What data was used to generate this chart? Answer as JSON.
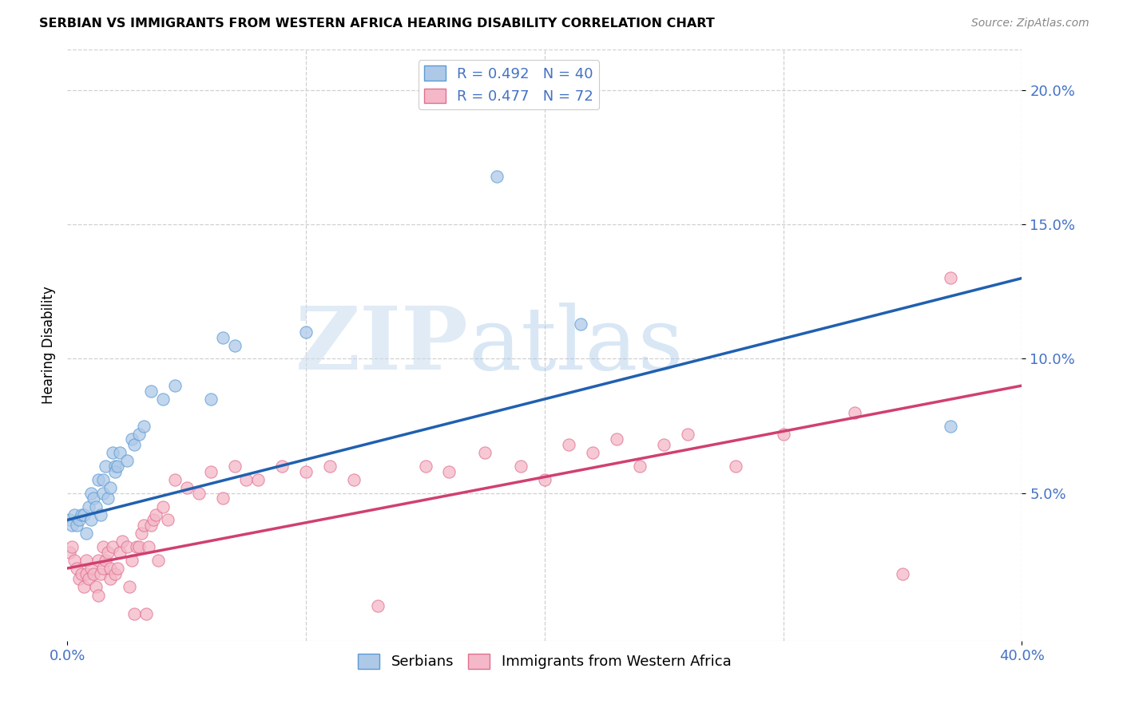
{
  "title": "SERBIAN VS IMMIGRANTS FROM WESTERN AFRICA HEARING DISABILITY CORRELATION CHART",
  "source": "Source: ZipAtlas.com",
  "ylabel": "Hearing Disability",
  "xlim": [
    0.0,
    0.4
  ],
  "ylim": [
    -0.005,
    0.215
  ],
  "yticks": [
    0.05,
    0.1,
    0.15,
    0.2
  ],
  "ytick_labels": [
    "5.0%",
    "10.0%",
    "15.0%",
    "20.0%"
  ],
  "xtick_labels_shown": [
    "0.0%",
    "40.0%"
  ],
  "xticks_shown": [
    0.0,
    0.4
  ],
  "watermark_zip": "ZIP",
  "watermark_atlas": "atlas",
  "legend_line1": "R = 0.492   N = 40",
  "legend_line2": "R = 0.477   N = 72",
  "legend_label_serbian": "Serbians",
  "legend_label_imm": "Immigrants from Western Africa",
  "color_serbian_fill": "#aec9e8",
  "color_serbian_edge": "#5b9bd5",
  "color_imm_fill": "#f4b8c8",
  "color_imm_edge": "#e07090",
  "color_line_serbian": "#2060b0",
  "color_line_imm": "#d04070",
  "color_text_blue": "#4472c4",
  "color_grid": "#d0d0d0",
  "serbian_line_intercept": 0.04,
  "serbian_line_slope": 0.225,
  "imm_line_intercept": 0.022,
  "imm_line_slope": 0.17,
  "serbian_x": [
    0.001,
    0.002,
    0.003,
    0.004,
    0.005,
    0.006,
    0.007,
    0.008,
    0.009,
    0.01,
    0.01,
    0.011,
    0.012,
    0.013,
    0.014,
    0.015,
    0.015,
    0.016,
    0.017,
    0.018,
    0.019,
    0.02,
    0.02,
    0.021,
    0.022,
    0.025,
    0.027,
    0.028,
    0.03,
    0.032,
    0.035,
    0.04,
    0.045,
    0.06,
    0.065,
    0.07,
    0.1,
    0.18,
    0.215,
    0.37
  ],
  "serbian_y": [
    0.04,
    0.038,
    0.042,
    0.038,
    0.04,
    0.042,
    0.042,
    0.035,
    0.045,
    0.04,
    0.05,
    0.048,
    0.045,
    0.055,
    0.042,
    0.055,
    0.05,
    0.06,
    0.048,
    0.052,
    0.065,
    0.06,
    0.058,
    0.06,
    0.065,
    0.062,
    0.07,
    0.068,
    0.072,
    0.075,
    0.088,
    0.085,
    0.09,
    0.085,
    0.108,
    0.105,
    0.11,
    0.168,
    0.113,
    0.075
  ],
  "imm_x": [
    0.001,
    0.002,
    0.003,
    0.004,
    0.005,
    0.006,
    0.007,
    0.008,
    0.008,
    0.009,
    0.01,
    0.011,
    0.012,
    0.013,
    0.013,
    0.014,
    0.015,
    0.015,
    0.016,
    0.017,
    0.018,
    0.018,
    0.019,
    0.02,
    0.021,
    0.022,
    0.023,
    0.025,
    0.026,
    0.027,
    0.028,
    0.029,
    0.03,
    0.031,
    0.032,
    0.033,
    0.034,
    0.035,
    0.036,
    0.037,
    0.038,
    0.04,
    0.042,
    0.045,
    0.05,
    0.055,
    0.06,
    0.065,
    0.07,
    0.075,
    0.08,
    0.09,
    0.1,
    0.11,
    0.12,
    0.13,
    0.15,
    0.16,
    0.175,
    0.19,
    0.2,
    0.21,
    0.22,
    0.23,
    0.24,
    0.25,
    0.26,
    0.28,
    0.3,
    0.33,
    0.35,
    0.37
  ],
  "imm_y": [
    0.028,
    0.03,
    0.025,
    0.022,
    0.018,
    0.02,
    0.015,
    0.025,
    0.02,
    0.018,
    0.022,
    0.02,
    0.015,
    0.025,
    0.012,
    0.02,
    0.03,
    0.022,
    0.025,
    0.028,
    0.018,
    0.022,
    0.03,
    0.02,
    0.022,
    0.028,
    0.032,
    0.03,
    0.015,
    0.025,
    0.005,
    0.03,
    0.03,
    0.035,
    0.038,
    0.005,
    0.03,
    0.038,
    0.04,
    0.042,
    0.025,
    0.045,
    0.04,
    0.055,
    0.052,
    0.05,
    0.058,
    0.048,
    0.06,
    0.055,
    0.055,
    0.06,
    0.058,
    0.06,
    0.055,
    0.008,
    0.06,
    0.058,
    0.065,
    0.06,
    0.055,
    0.068,
    0.065,
    0.07,
    0.06,
    0.068,
    0.072,
    0.06,
    0.072,
    0.08,
    0.02,
    0.13
  ],
  "background_color": "#ffffff"
}
